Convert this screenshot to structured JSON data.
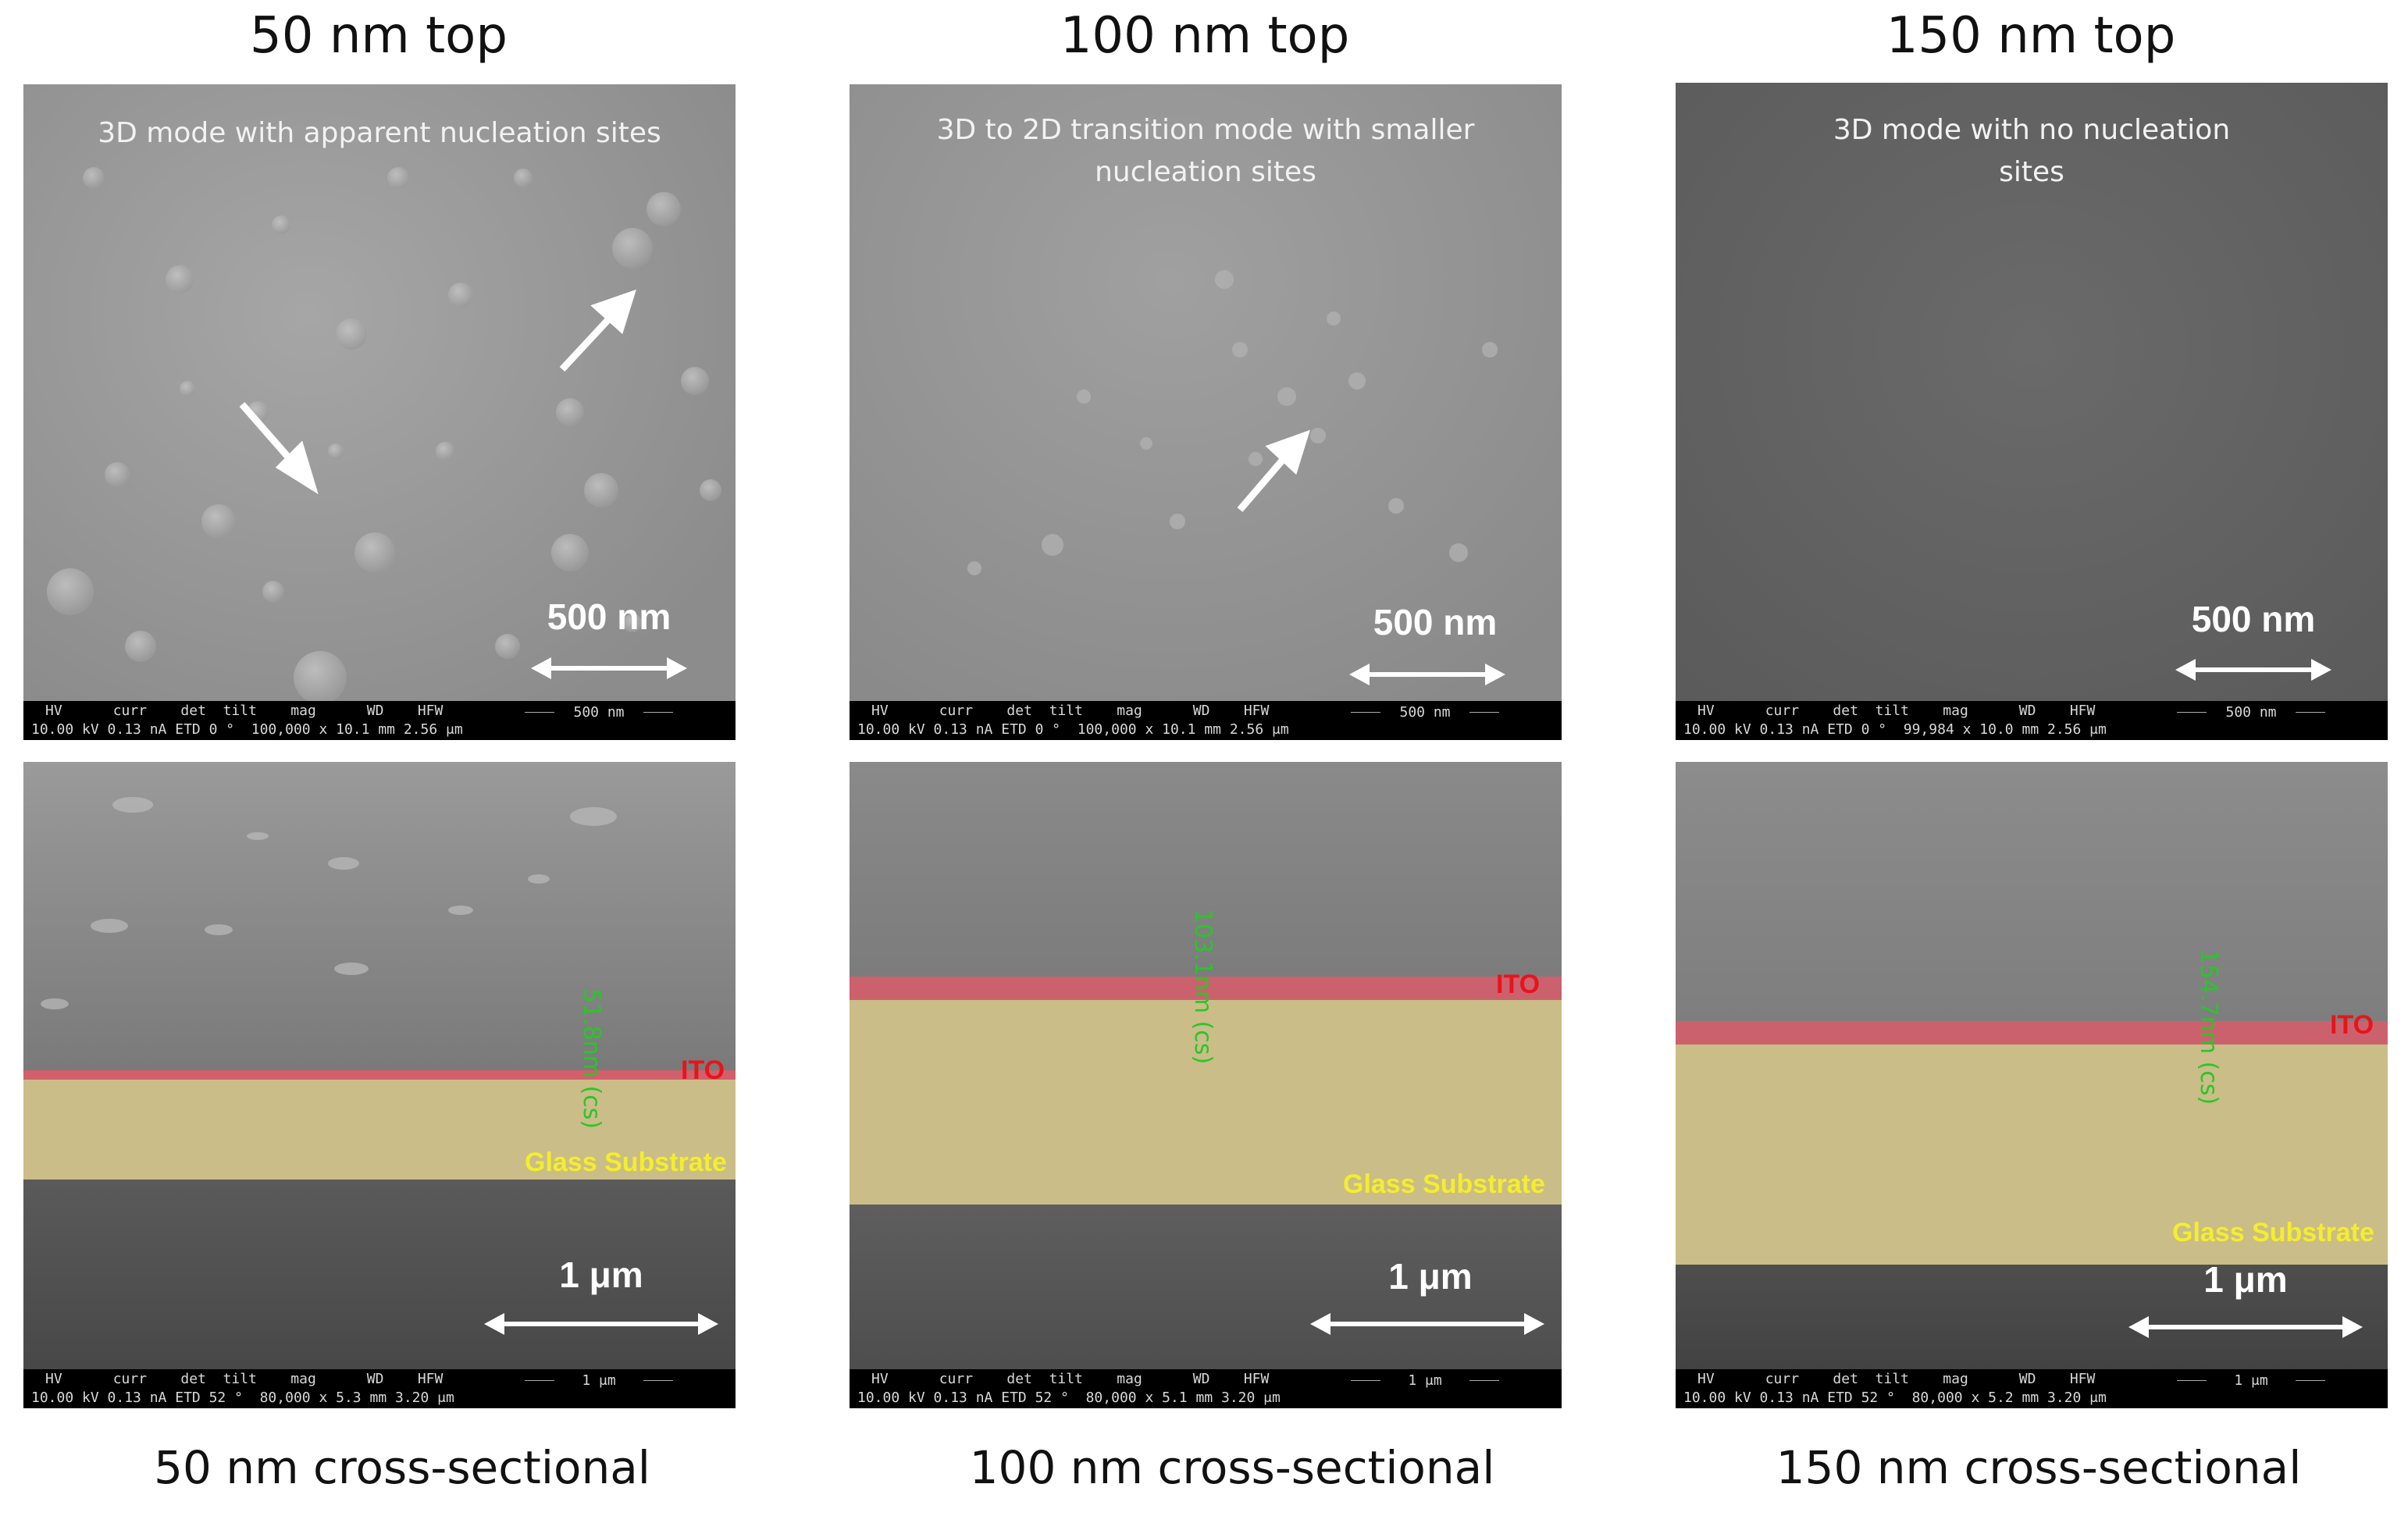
{
  "columns": [
    {
      "title": "50 nm top",
      "caption": "50 nm cross-sectional",
      "top_panel": {
        "note": "3D mode with apparent nucleation sites",
        "scale_label": "500 nm",
        "info_header": "HV      curr    det  tilt    mag      WD    HFW",
        "info_values": "10.00 kV 0.13 nA ETD 0 °  100,000 x 10.1 mm 2.56 μm",
        "info_scale": "500 nm"
      },
      "cross_panel": {
        "ito_label": "ITO",
        "glass_label": "Glass Substrate",
        "measurement": "51.8nm (cs)",
        "scale_label": "1 μm",
        "info_header": "HV      curr    det  tilt    mag      WD    HFW",
        "info_values": "10.00 kV 0.13 nA ETD 52 °  80,000 x 5.3 mm 3.20 μm",
        "info_scale": "1 μm"
      }
    },
    {
      "title": "100 nm top",
      "caption": "100 nm cross-sectional",
      "top_panel": {
        "note": "3D to 2D transition mode with smaller\nnucleation sites",
        "scale_label": "500 nm",
        "info_header": "HV      curr    det  tilt    mag      WD    HFW",
        "info_values": "10.00 kV 0.13 nA ETD 0 °  100,000 x 10.1 mm 2.56 μm",
        "info_scale": "500 nm"
      },
      "cross_panel": {
        "ito_label": "ITO",
        "glass_label": "Glass Substrate",
        "measurement": "103.1nm (cs)",
        "scale_label": "1 μm",
        "info_header": "HV      curr    det  tilt    mag      WD    HFW",
        "info_values": "10.00 kV 0.13 nA ETD 52 °  80,000 x 5.1 mm 3.20 μm",
        "info_scale": "1 μm"
      }
    },
    {
      "title": "150 nm top",
      "caption": "150 nm cross-sectional",
      "top_panel": {
        "note": "3D mode with no nucleation\nsites",
        "scale_label": "500 nm",
        "info_header": "HV      curr    det  tilt    mag      WD    HFW",
        "info_values": "10.00 kV 0.13 nA ETD 0 °  99,984 x 10.0 mm 2.56 μm",
        "info_scale": "500 nm"
      },
      "cross_panel": {
        "ito_label": "ITO",
        "glass_label": "Glass Substrate",
        "measurement": "154.7nm (cs)",
        "scale_label": "1 μm",
        "info_header": "HV      curr    det  tilt    mag      WD    HFW",
        "info_values": "10.00 kV 0.13 nA ETD 52 °  80,000 x 5.2 mm 3.20 μm",
        "info_scale": "1 μm"
      }
    }
  ],
  "colors": {
    "ito_overlay": "#e05a6a",
    "glass_overlay": "#d8c98a",
    "ito_text": "#e8141b",
    "glass_text": "#f4ee2c",
    "measurement_text": "#29c629"
  }
}
